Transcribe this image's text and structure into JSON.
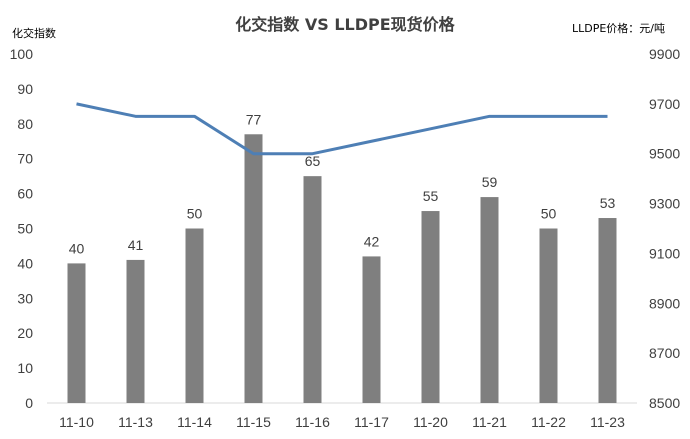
{
  "chart_data": {
    "type": "bar",
    "title": "化交指数 VS LLDPE现货价格",
    "left_axis_unit": "化交指数",
    "right_axis_unit": "LLDPE价格：元/吨",
    "categories": [
      "11-10",
      "11-13",
      "11-14",
      "11-15",
      "11-16",
      "11-17",
      "11-20",
      "11-21",
      "11-22",
      "11-23"
    ],
    "series": [
      {
        "type": "bar",
        "axis": "left",
        "values": [
          40,
          41,
          50,
          77,
          65,
          42,
          55,
          59,
          50,
          53
        ],
        "color": "#7f7f7f"
      },
      {
        "type": "line",
        "axis": "right",
        "values": [
          9700,
          9650,
          9650,
          9500,
          9500,
          9550,
          9600,
          9650,
          9650,
          9650
        ],
        "color": "#4e7fb5"
      }
    ],
    "left_ylim": [
      0,
      100
    ],
    "left_ticks": [
      0,
      10,
      20,
      30,
      40,
      50,
      60,
      70,
      80,
      90,
      100
    ],
    "right_ylim": [
      8500,
      9900
    ],
    "right_ticks": [
      8500,
      8700,
      8900,
      9100,
      9300,
      9500,
      9700,
      9900
    ],
    "grid": false,
    "legend": "none"
  }
}
